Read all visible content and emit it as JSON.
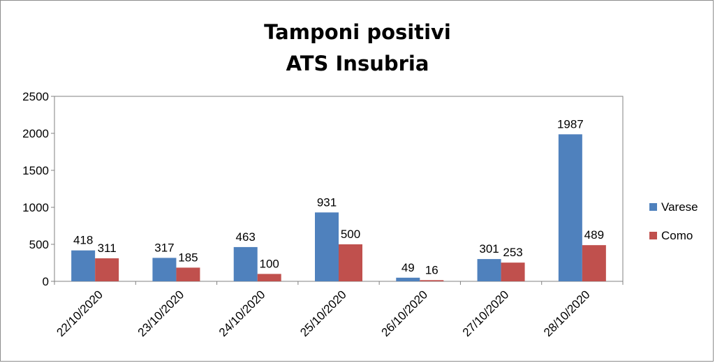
{
  "chart_data": {
    "type": "bar",
    "title": [
      "Tamponi positivi",
      "ATS Insubria"
    ],
    "categories": [
      "22/10/2020",
      "23/10/2020",
      "24/10/2020",
      "25/10/2020",
      "26/10/2020",
      "27/10/2020",
      "28/10/2020"
    ],
    "series": [
      {
        "name": "Varese",
        "values": [
          418,
          317,
          463,
          931,
          49,
          301,
          1987
        ],
        "color": "#4f81bd"
      },
      {
        "name": "Como",
        "values": [
          311,
          185,
          100,
          500,
          16,
          253,
          489
        ],
        "color": "#c0504d"
      }
    ],
    "yticks": [
      "0",
      "500",
      "1000",
      "1500",
      "2000",
      "2500"
    ],
    "ylim": [
      0,
      2500
    ],
    "legend_position": "right",
    "grid": false
  }
}
